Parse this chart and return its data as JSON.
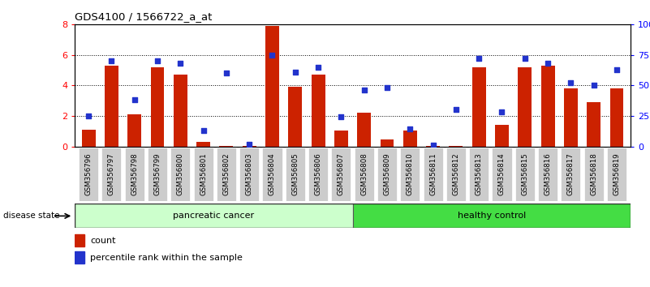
{
  "title": "GDS4100 / 1566722_a_at",
  "samples": [
    "GSM356796",
    "GSM356797",
    "GSM356798",
    "GSM356799",
    "GSM356800",
    "GSM356801",
    "GSM356802",
    "GSM356803",
    "GSM356804",
    "GSM356805",
    "GSM356806",
    "GSM356807",
    "GSM356808",
    "GSM356809",
    "GSM356810",
    "GSM356811",
    "GSM356812",
    "GSM356813",
    "GSM356814",
    "GSM356815",
    "GSM356816",
    "GSM356817",
    "GSM356818",
    "GSM356819"
  ],
  "counts": [
    1.1,
    5.3,
    2.1,
    5.2,
    4.7,
    0.3,
    0.05,
    0.05,
    7.9,
    3.9,
    4.7,
    1.05,
    2.2,
    0.45,
    1.05,
    0.05,
    0.05,
    5.2,
    1.4,
    5.2,
    5.3,
    3.8,
    2.9,
    3.8
  ],
  "percentiles": [
    25,
    70,
    38,
    70,
    68,
    13,
    60,
    2,
    75,
    61,
    65,
    24,
    46,
    48,
    14,
    1,
    30,
    72,
    28,
    72,
    68,
    52,
    50,
    63
  ],
  "groups": [
    "pancreatic cancer",
    "pancreatic cancer",
    "pancreatic cancer",
    "pancreatic cancer",
    "pancreatic cancer",
    "pancreatic cancer",
    "pancreatic cancer",
    "pancreatic cancer",
    "pancreatic cancer",
    "pancreatic cancer",
    "pancreatic cancer",
    "pancreatic cancer",
    "healthy control",
    "healthy control",
    "healthy control",
    "healthy control",
    "healthy control",
    "healthy control",
    "healthy control",
    "healthy control",
    "healthy control",
    "healthy control",
    "healthy control",
    "healthy control"
  ],
  "bar_color": "#cc2200",
  "dot_color": "#2233cc",
  "ylim_left": [
    0,
    8
  ],
  "ylim_right": [
    0,
    100
  ],
  "yticks_left": [
    0,
    2,
    4,
    6,
    8
  ],
  "yticks_right": [
    0,
    25,
    50,
    75,
    100
  ],
  "yticklabels_right": [
    "0",
    "25",
    "50",
    "75",
    "100%"
  ],
  "group_colors": {
    "pancreatic cancer": "#ccffcc",
    "healthy control": "#44dd44"
  },
  "label_bg": "#cccccc",
  "legend_count_label": "count",
  "legend_percentile_label": "percentile rank within the sample",
  "pancreatic_count": 12,
  "healthy_count": 12
}
